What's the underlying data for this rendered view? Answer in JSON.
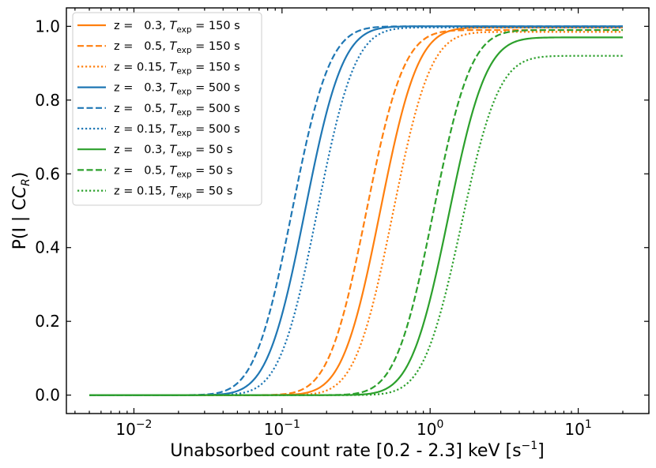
{
  "chart_data": {
    "type": "line",
    "title": "",
    "xlabel": "Unabsorbed count rate [0.2 - 2.3] keV [s",
    "xlabel_sup": "−1",
    "xlabel_end": "]",
    "ylabel": "P(I | C",
    "ylabel_sub": "R",
    "ylabel_end": ")",
    "xscale": "log",
    "xlim": [
      0.0035,
      30
    ],
    "ylim": [
      -0.05,
      1.05
    ],
    "x_range": [
      0.005,
      20
    ],
    "x_ticks": [
      {
        "value": 0.01,
        "base": "10",
        "exp": "−2"
      },
      {
        "value": 0.1,
        "base": "10",
        "exp": "−1"
      },
      {
        "value": 1,
        "base": "10",
        "exp": "0"
      },
      {
        "value": 10,
        "base": "10",
        "exp": "1"
      }
    ],
    "y_ticks": [
      {
        "value": 0.0,
        "label": "0.0"
      },
      {
        "value": 0.2,
        "label": "0.2"
      },
      {
        "value": 0.4,
        "label": "0.4"
      },
      {
        "value": 0.6,
        "label": "0.6"
      },
      {
        "value": 0.8,
        "label": "0.8"
      },
      {
        "value": 1.0,
        "label": "1.0"
      }
    ],
    "legend_position": "top-left",
    "series": [
      {
        "z": "z =   0.3, ",
        "t_sym": "T",
        "t_sub": "exp",
        "t_val": " = 150 s",
        "color": "#ff7f0e",
        "dash": "solid",
        "x50": 0.46,
        "s": 0.2,
        "plateau": 0.997
      },
      {
        "z": "z =   0.5, ",
        "t_sym": "T",
        "t_sub": "exp",
        "t_val": " = 150 s",
        "color": "#ff7f0e",
        "dash": "dashed",
        "x50": 0.37,
        "s": 0.2,
        "plateau": 0.99
      },
      {
        "z": "z = 0.15, ",
        "t_sym": "T",
        "t_sub": "exp",
        "t_val": " = 150 s",
        "color": "#ff7f0e",
        "dash": "dotted",
        "x50": 0.56,
        "s": 0.2,
        "plateau": 0.985
      },
      {
        "z": "z =   0.3, ",
        "t_sym": "T",
        "t_sub": "exp",
        "t_val": " = 500 s",
        "color": "#1f77b4",
        "dash": "solid",
        "x50": 0.143,
        "s": 0.2,
        "plateau": 1.0
      },
      {
        "z": "z =   0.5, ",
        "t_sym": "T",
        "t_sub": "exp",
        "t_val": " = 500 s",
        "color": "#1f77b4",
        "dash": "dashed",
        "x50": 0.117,
        "s": 0.2,
        "plateau": 1.0
      },
      {
        "z": "z = 0.15, ",
        "t_sym": "T",
        "t_sub": "exp",
        "t_val": " = 500 s",
        "color": "#1f77b4",
        "dash": "dotted",
        "x50": 0.173,
        "s": 0.2,
        "plateau": 0.997
      },
      {
        "z": "z =   0.3, ",
        "t_sym": "T",
        "t_sub": "exp",
        "t_val": " = 50 s",
        "color": "#2ca02c",
        "dash": "solid",
        "x50": 1.33,
        "s": 0.2,
        "plateau": 0.97
      },
      {
        "z": "z =   0.5, ",
        "t_sym": "T",
        "t_sub": "exp",
        "t_val": " = 50 s",
        "color": "#2ca02c",
        "dash": "dashed",
        "x50": 1.05,
        "s": 0.2,
        "plateau": 0.99
      },
      {
        "z": "z = 0.15, ",
        "t_sym": "T",
        "t_sub": "exp",
        "t_val": " = 50 s",
        "color": "#2ca02c",
        "dash": "dotted",
        "x50": 1.62,
        "s": 0.2,
        "plateau": 0.92
      }
    ]
  }
}
